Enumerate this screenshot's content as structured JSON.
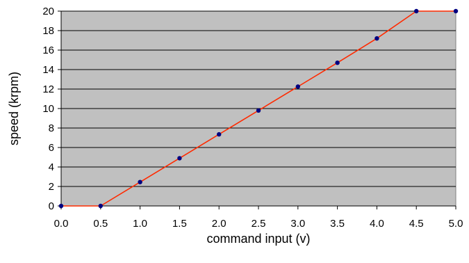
{
  "chart_data": {
    "type": "line",
    "title": "",
    "xlabel": "command input (v)",
    "ylabel": "speed (krpm)",
    "xlim": [
      0,
      5
    ],
    "ylim": [
      0,
      20
    ],
    "x_ticks": [
      "0.0",
      "0.5",
      "1.0",
      "1.5",
      "2.0",
      "2.5",
      "3.0",
      "3.5",
      "4.0",
      "4.5",
      "5.0"
    ],
    "y_ticks": [
      "0",
      "2",
      "4",
      "6",
      "8",
      "10",
      "12",
      "14",
      "16",
      "18",
      "20"
    ],
    "grid": "horizontal",
    "legend": "none",
    "series": [
      {
        "x": [
          0.0,
          0.5,
          1.0,
          1.5,
          2.0,
          2.5,
          3.0,
          3.5,
          4.0,
          4.5,
          5.0
        ],
        "y": [
          0,
          0,
          2.45,
          4.9,
          7.35,
          9.8,
          12.25,
          14.7,
          17.2,
          20,
          20
        ]
      }
    ],
    "colors": {
      "plot_background": "#c0c0c0",
      "gridline": "#000000",
      "line": "#ff2a00",
      "marker": "#000080"
    }
  }
}
